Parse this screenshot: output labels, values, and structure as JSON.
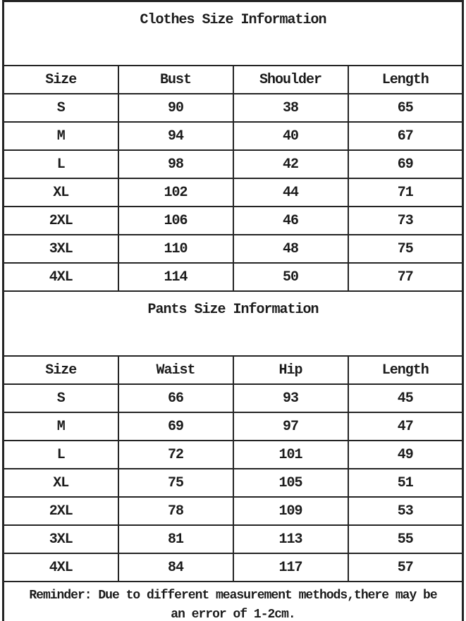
{
  "page": {
    "background_color": "#ffffff",
    "text_color": "#1b1b1b",
    "border_color": "#242424"
  },
  "clothes": {
    "title": "Clothes Size Information",
    "headers": [
      "Size",
      "Bust",
      "Shoulder",
      "Length"
    ],
    "rows": [
      [
        "S",
        "90",
        "38",
        "65"
      ],
      [
        "M",
        "94",
        "40",
        "67"
      ],
      [
        "L",
        "98",
        "42",
        "69"
      ],
      [
        "XL",
        "102",
        "44",
        "71"
      ],
      [
        "2XL",
        "106",
        "46",
        "73"
      ],
      [
        "3XL",
        "110",
        "48",
        "75"
      ],
      [
        "4XL",
        "114",
        "50",
        "77"
      ]
    ]
  },
  "pants": {
    "title": "Pants Size Information",
    "headers": [
      "Size",
      "Waist",
      "Hip",
      "Length"
    ],
    "rows": [
      [
        "S",
        "66",
        "93",
        "45"
      ],
      [
        "M",
        "69",
        "97",
        "47"
      ],
      [
        "L",
        "72",
        "101",
        "49"
      ],
      [
        "XL",
        "75",
        "105",
        "51"
      ],
      [
        "2XL",
        "78",
        "109",
        "53"
      ],
      [
        "3XL",
        "81",
        "113",
        "55"
      ],
      [
        "4XL",
        "84",
        "117",
        "57"
      ]
    ]
  },
  "reminder": {
    "line1": "Reminder: Due to different measurement methods,there may be",
    "line2": "an error of 1-2cm."
  }
}
